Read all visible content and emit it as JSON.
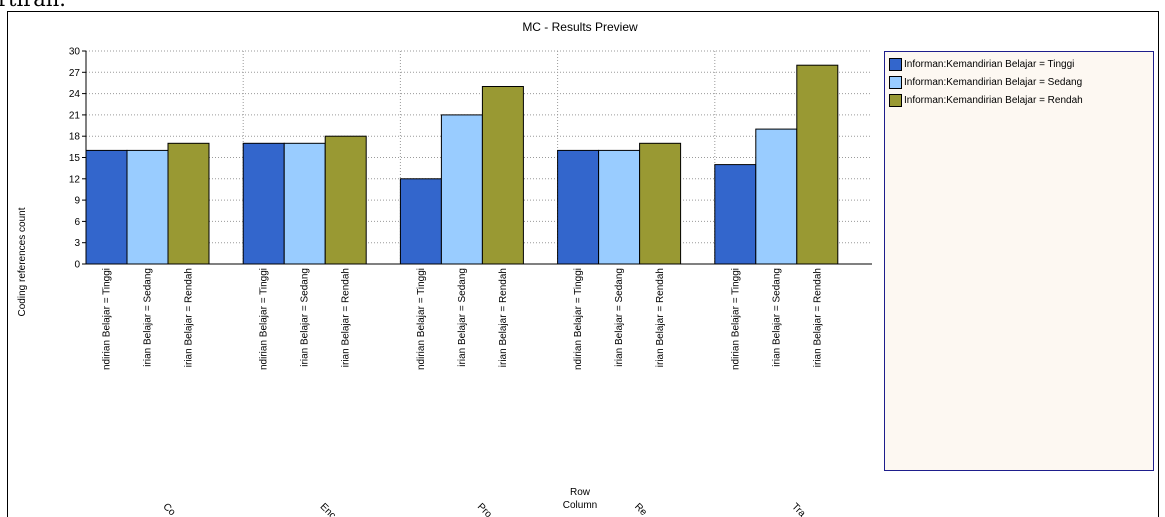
{
  "crop_text": "rtiran.",
  "chart_data": {
    "type": "bar",
    "title": "MC - Results Preview",
    "ylabel": "Coding references count",
    "xlabel_lines": [
      "Row",
      "Column"
    ],
    "ylim": [
      0,
      30
    ],
    "yticks": [
      0,
      3,
      6,
      9,
      12,
      15,
      18,
      21,
      24,
      27,
      30
    ],
    "grid": true,
    "legend_position": "right",
    "categories": [
      "Co",
      "Enc",
      "Pro",
      "Re",
      "Tra"
    ],
    "bar_tick_labels": [
      "ndirian Belajar = Tinggi",
      "irian Belajar = Sedang",
      "irian Belajar = Rendah"
    ],
    "series": [
      {
        "name": "Informan:Kemandirian Belajar = Tinggi",
        "color": "#3366cc",
        "values": [
          16,
          17,
          12,
          16,
          14
        ]
      },
      {
        "name": "Informan:Kemandirian Belajar = Sedang",
        "color": "#99ccff",
        "values": [
          16,
          17,
          21,
          16,
          19
        ]
      },
      {
        "name": "Informan:Kemandirian Belajar = Rendah",
        "color": "#999933",
        "values": [
          17,
          18,
          25,
          17,
          28
        ]
      }
    ]
  }
}
